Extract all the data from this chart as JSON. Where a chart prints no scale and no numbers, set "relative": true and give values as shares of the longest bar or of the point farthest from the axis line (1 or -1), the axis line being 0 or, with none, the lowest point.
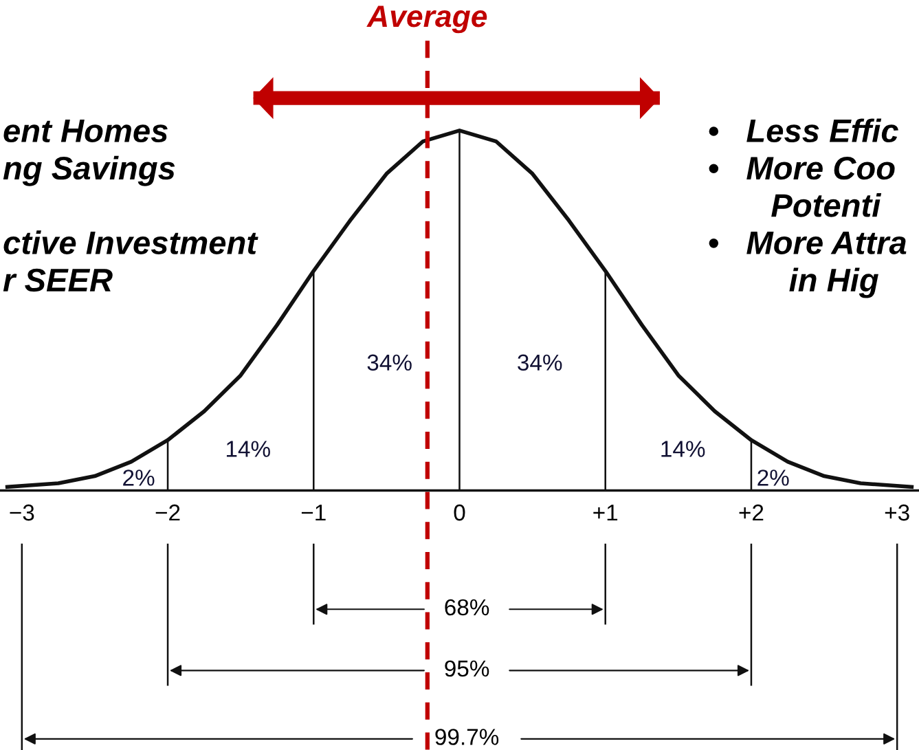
{
  "chart_data": {
    "type": "line",
    "relative": true,
    "grid": false,
    "xlim": [
      -3.15,
      3.15
    ],
    "xticks": [
      {
        "value": -3,
        "label": "−3"
      },
      {
        "value": -2,
        "label": "−2"
      },
      {
        "value": -1,
        "label": "−1"
      },
      0,
      {
        "value": 1,
        "label": "+1"
      },
      {
        "value": 2,
        "label": "+2"
      },
      {
        "value": 3,
        "label": "+3"
      }
    ],
    "series": [
      {
        "color": "#111111",
        "x": [
          -3.1,
          -2.75,
          -2.5,
          -2.25,
          -2.0,
          -1.75,
          -1.5,
          -1.25,
          -1.0,
          -0.75,
          -0.5,
          -0.25,
          0.0,
          0.25,
          0.5,
          0.75,
          1.0,
          1.25,
          1.5,
          1.75,
          2.0,
          2.25,
          2.5,
          2.75,
          3.1
        ],
        "values": [
          0.01,
          0.02,
          0.04,
          0.08,
          0.14,
          0.22,
          0.32,
          0.46,
          0.61,
          0.75,
          0.88,
          0.97,
          1.0,
          0.97,
          0.88,
          0.75,
          0.61,
          0.46,
          0.32,
          0.22,
          0.14,
          0.08,
          0.04,
          0.02,
          0.01
        ]
      },
      {
        "type": "bar",
        "color": "#111111",
        "x": [
          -2,
          -1,
          0,
          1,
          2
        ],
        "values": [
          0.14,
          0.61,
          1.0,
          0.61,
          0.14
        ]
      }
    ],
    "ref_lines": [
      {
        "axis": "x",
        "value": -0.22,
        "label": "Average",
        "color": "#c00000",
        "line_style": "dashed"
      }
    ],
    "annotations": [
      "ent Homes\nng Savings\n\nctive Investment\nr SEER",
      "•   Less Effic\n•   More Coo\n       Potenti\n•   More Attra\n         in Hig",
      "68%",
      "95%",
      "99.7%",
      "34%",
      "34%",
      "14%",
      "14%",
      "2%",
      "2%"
    ]
  }
}
